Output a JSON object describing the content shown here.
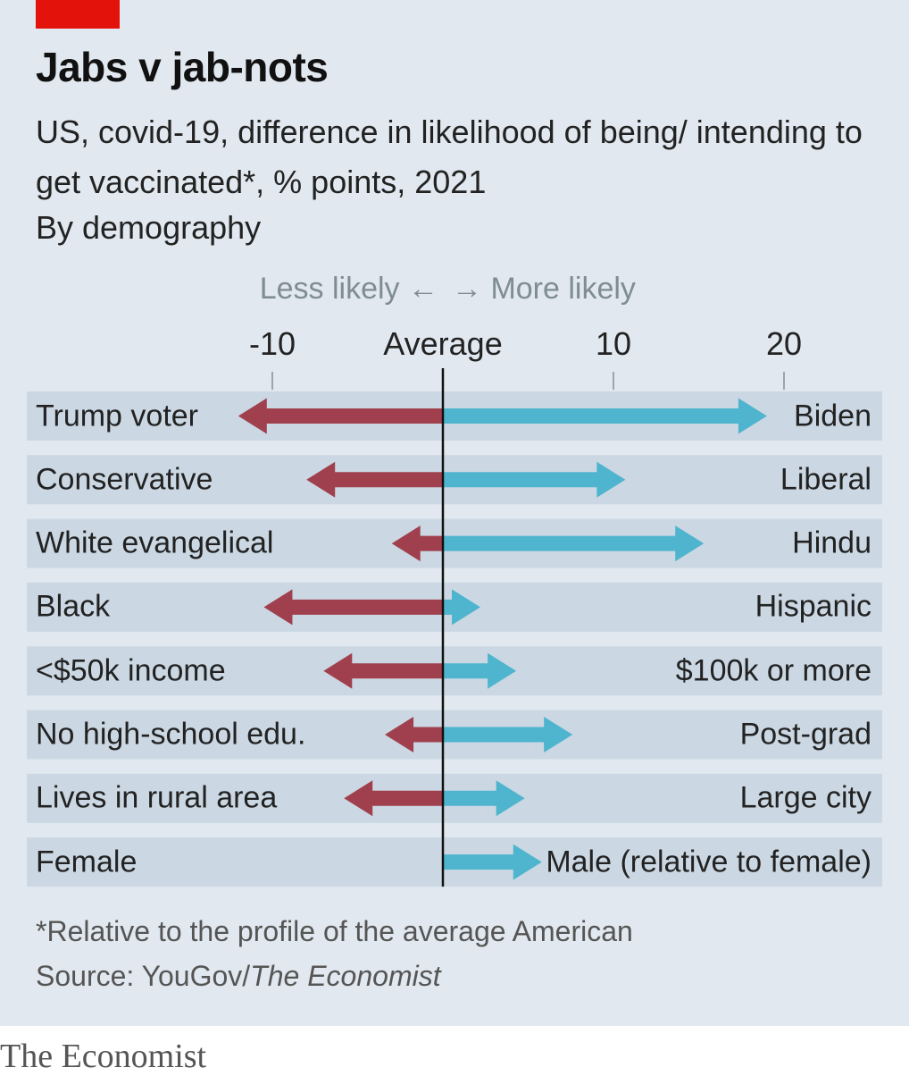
{
  "header": {
    "title": "Jabs v jab-nots",
    "subtitle": "US, covid-19, difference in likelihood of being/ intending to get vaccinated*, % points, 2021",
    "subtitle2": "By demography"
  },
  "colors": {
    "negative": "#a0404e",
    "positive": "#4fb4ce",
    "row_band": "#cbd8e3",
    "tag": "#e3120b"
  },
  "chart_data": {
    "type": "bar",
    "direction_labels": {
      "less": "Less likely",
      "more": "More likely"
    },
    "x_ticks": [
      {
        "value": -10,
        "label": "-10"
      },
      {
        "value": 0,
        "label": "Average"
      },
      {
        "value": 10,
        "label": "10"
      },
      {
        "value": 20,
        "label": "20"
      }
    ],
    "xlim": [
      -15,
      25
    ],
    "series": [
      {
        "name": "Less likely",
        "color": "#a0404e"
      },
      {
        "name": "More likely",
        "color": "#4fb4ce"
      }
    ],
    "rows": [
      {
        "left_label": "Trump voter",
        "right_label": "Biden",
        "neg": -12,
        "pos": 19
      },
      {
        "left_label": "Conservative",
        "right_label": "Liberal",
        "neg": -8,
        "pos": 10.7
      },
      {
        "left_label": "White evangelical",
        "right_label": "Hindu",
        "neg": -3,
        "pos": 15.3
      },
      {
        "left_label": "Black",
        "right_label": "Hispanic",
        "neg": -10.5,
        "pos": 2.2
      },
      {
        "left_label": "<$50k income",
        "right_label": "$100k or more",
        "neg": -7,
        "pos": 4.3
      },
      {
        "left_label": "No high-school edu.",
        "right_label": "Post-grad",
        "neg": -3.4,
        "pos": 7.6
      },
      {
        "left_label": "Lives in rural area",
        "right_label": "Large city",
        "neg": -5.8,
        "pos": 4.8
      },
      {
        "left_label": "Female",
        "right_label": "Male (relative to female)",
        "neg": 0,
        "pos": 5.8
      }
    ]
  },
  "footer": {
    "note": "*Relative to the profile of the average American",
    "source_prefix": "Source: YouGov/",
    "source_italic": "The Economist",
    "brand": "The Economist"
  }
}
